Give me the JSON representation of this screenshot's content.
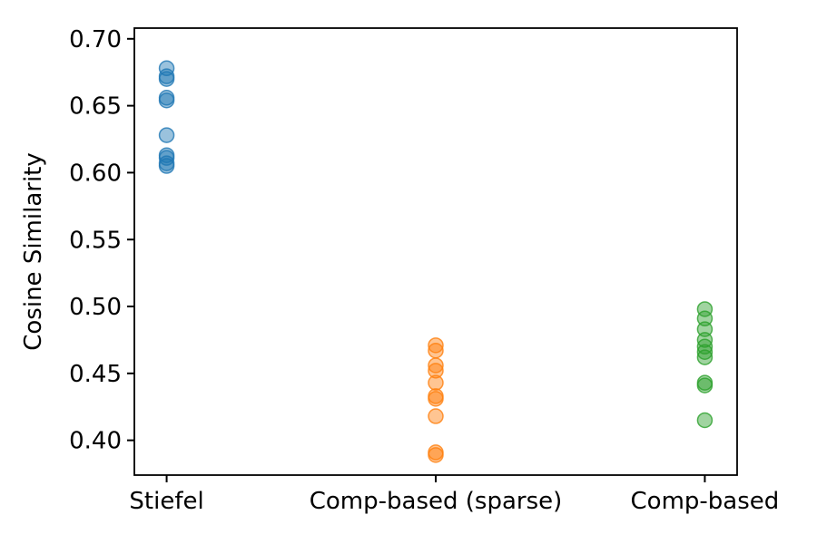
{
  "chart_data": {
    "type": "scatter",
    "title": "",
    "xlabel": "",
    "ylabel": "Cosine Similarity",
    "categories": [
      "Stiefel",
      "Comp-based (sparse)",
      "Comp-based"
    ],
    "x_positions": [
      0,
      1,
      2
    ],
    "xlim": [
      -0.12,
      2.12
    ],
    "ylim": [
      0.374,
      0.708
    ],
    "yticks": [
      0.4,
      0.45,
      0.5,
      0.55,
      0.6,
      0.65,
      0.7
    ],
    "ytick_labels": [
      "0.40",
      "0.45",
      "0.50",
      "0.55",
      "0.60",
      "0.65",
      "0.70"
    ],
    "grid": false,
    "legend": "none",
    "axis_color": "#000000",
    "marker_style": {
      "shape": "circle",
      "radius_px": 8,
      "fill_alpha": 0.45,
      "stroke_alpha": 0.8
    },
    "series": [
      {
        "name": "Stiefel",
        "color": "#1f77b4",
        "values": [
          0.678,
          0.672,
          0.67,
          0.656,
          0.654,
          0.628,
          0.613,
          0.611,
          0.607,
          0.605
        ]
      },
      {
        "name": "Comp-based (sparse)",
        "color": "#ff7f0e",
        "values": [
          0.471,
          0.467,
          0.456,
          0.452,
          0.443,
          0.433,
          0.431,
          0.418,
          0.391,
          0.389
        ]
      },
      {
        "name": "Comp-based",
        "color": "#2ca02c",
        "values": [
          0.498,
          0.491,
          0.483,
          0.475,
          0.47,
          0.466,
          0.462,
          0.443,
          0.441,
          0.415
        ]
      }
    ]
  }
}
